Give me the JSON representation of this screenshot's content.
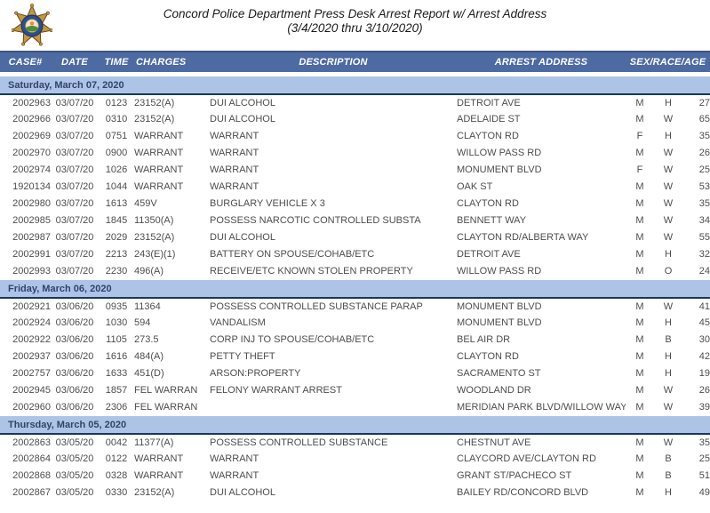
{
  "header": {
    "title_line1": "Concord Police Department Press Desk Arrest Report w/ Arrest Address",
    "title_line2": "(3/4/2020 thru 3/10/2020)"
  },
  "icons": {
    "badge": "concord-police-star-badge"
  },
  "colors": {
    "header_bg": "#4E6AA3",
    "header_top_edge": "#3E5585",
    "section_bg": "#AEC4E6",
    "accent_navy": "#17375D",
    "section_text": "#31436B",
    "row_text": "#4D4D4D",
    "title_text": "#1A1A1A"
  },
  "table": {
    "columns": [
      "CASE#",
      "DATE",
      "TIME",
      "CHARGES",
      "DESCRIPTION",
      "ARREST ADDRESS",
      "SEX/RACE/AGE"
    ],
    "sections": [
      {
        "label": "Saturday, March 07, 2020",
        "rows": [
          [
            "2002963",
            "03/07/20",
            "0123",
            "23152(A)",
            "DUI ALCOHOL",
            "DETROIT AVE",
            "M",
            "H",
            "27"
          ],
          [
            "2002966",
            "03/07/20",
            "0310",
            "23152(A)",
            "DUI ALCOHOL",
            "ADELAIDE ST",
            "M",
            "W",
            "65"
          ],
          [
            "2002969",
            "03/07/20",
            "0751",
            "WARRANT",
            "WARRANT",
            "CLAYTON RD",
            "F",
            "H",
            "35"
          ],
          [
            "2002970",
            "03/07/20",
            "0900",
            "WARRANT",
            "WARRANT",
            "WILLOW PASS RD",
            "M",
            "W",
            "26"
          ],
          [
            "2002974",
            "03/07/20",
            "1026",
            "WARRANT",
            "WARRANT",
            "MONUMENT BLVD",
            "F",
            "W",
            "25"
          ],
          [
            "1920134",
            "03/07/20",
            "1044",
            "WARRANT",
            "WARRANT",
            "OAK ST",
            "M",
            "W",
            "53"
          ],
          [
            "2002980",
            "03/07/20",
            "1613",
            "459V",
            "BURGLARY VEHICLE X 3",
            "CLAYTON RD",
            "M",
            "W",
            "35"
          ],
          [
            "2002985",
            "03/07/20",
            "1845",
            "11350(A)",
            "POSSESS NARCOTIC CONTROLLED SUBSTA",
            "BENNETT WAY",
            "M",
            "W",
            "34"
          ],
          [
            "2002987",
            "03/07/20",
            "2029",
            "23152(A)",
            "DUI ALCOHOL",
            "CLAYTON RD/ALBERTA WAY",
            "M",
            "W",
            "55"
          ],
          [
            "2002991",
            "03/07/20",
            "2213",
            "243(E)(1)",
            "BATTERY ON SPOUSE/COHAB/ETC",
            "DETROIT AVE",
            "M",
            "H",
            "32"
          ],
          [
            "2002993",
            "03/07/20",
            "2230",
            "496(A)",
            "RECEIVE/ETC KNOWN STOLEN PROPERTY",
            "WILLOW PASS RD",
            "M",
            "O",
            "24"
          ]
        ]
      },
      {
        "label": "Friday, March 06, 2020",
        "rows": [
          [
            "2002921",
            "03/06/20",
            "0935",
            "11364",
            "POSSESS CONTROLLED SUBSTANCE PARAP",
            "MONUMENT BLVD",
            "M",
            "W",
            "41"
          ],
          [
            "2002924",
            "03/06/20",
            "1030",
            "594",
            "VANDALISM",
            "MONUMENT BLVD",
            "M",
            "H",
            "45"
          ],
          [
            "2002922",
            "03/06/20",
            "1105",
            "273.5",
            "CORP INJ TO SPOUSE/COHAB/ETC",
            "BEL AIR DR",
            "M",
            "B",
            "30"
          ],
          [
            "2002937",
            "03/06/20",
            "1616",
            "484(A)",
            "PETTY THEFT",
            "CLAYTON RD",
            "M",
            "H",
            "42"
          ],
          [
            "2002757",
            "03/06/20",
            "1633",
            "451(D)",
            "ARSON:PROPERTY",
            "SACRAMENTO ST",
            "M",
            "H",
            "19"
          ],
          [
            "2002945",
            "03/06/20",
            "1857",
            "FEL WARRAN",
            "FELONY WARRANT ARREST",
            "WOODLAND DR",
            "M",
            "W",
            "26"
          ],
          [
            "2002960",
            "03/06/20",
            "2306",
            "FEL WARRAN",
            "",
            "MERIDIAN PARK BLVD/WILLOW WAY",
            "M",
            "W",
            "39"
          ]
        ]
      },
      {
        "label": "Thursday, March 05, 2020",
        "rows": [
          [
            "2002863",
            "03/05/20",
            "0042",
            "11377(A)",
            "POSSESS CONTROLLED SUBSTANCE",
            "CHESTNUT AVE",
            "M",
            "W",
            "35"
          ],
          [
            "2002864",
            "03/05/20",
            "0122",
            "WARRANT",
            "WARRANT",
            "CLAYCORD AVE/CLAYTON RD",
            "M",
            "B",
            "25"
          ],
          [
            "2002868",
            "03/05/20",
            "0328",
            "WARRANT",
            "WARRANT",
            "GRANT ST/PACHECO ST",
            "M",
            "B",
            "51"
          ],
          [
            "2002867",
            "03/05/20",
            "0330",
            "23152(A)",
            "DUI ALCOHOL",
            "BAILEY RD/CONCORD BLVD",
            "M",
            "H",
            "49"
          ]
        ]
      }
    ]
  }
}
